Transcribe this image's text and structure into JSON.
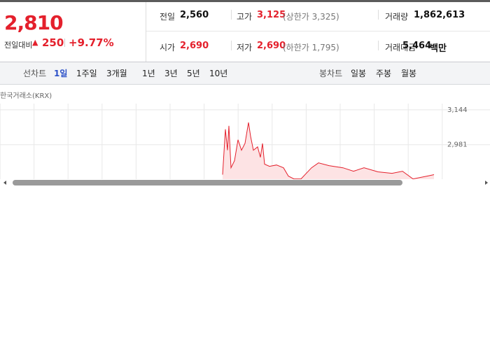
{
  "quote": {
    "price": "2,810",
    "change_label": "전일대비",
    "change": "250",
    "change_rate": "+9.77%"
  },
  "stats": [
    [
      {
        "label": "전일",
        "value": "2,560"
      },
      {
        "label": "고가",
        "value": "3,125",
        "note": "(상한가 3,325)"
      },
      {
        "label": "거래량",
        "value": "1,862,613"
      }
    ],
    [
      {
        "label": "시가",
        "value": "2,690"
      },
      {
        "label": "저가",
        "value": "2,690",
        "note": "(하한가 1,795)"
      },
      {
        "label": "거래대금",
        "value": "5,464",
        "unit": "백만"
      }
    ]
  ],
  "toolbar": {
    "line_label": "선차트",
    "line_periods": [
      "1일",
      "1주일",
      "3개월",
      "1년",
      "3년",
      "5년",
      "10년"
    ],
    "candle_label": "봉차트",
    "candle_periods": [
      "일봉",
      "주봉",
      "월봉"
    ]
  },
  "chart_data": {
    "type": "line",
    "source": "한국거래소(KRX)",
    "color": "#e4202c",
    "grid": true,
    "x": [
      63.6,
      64.4,
      65,
      65.4,
      66,
      67,
      68,
      69,
      70,
      71,
      71.6,
      72.4,
      73.6,
      74.4,
      75,
      75.6,
      77,
      79,
      81,
      82.4,
      84,
      86,
      89,
      91,
      94,
      98,
      101,
      104,
      108,
      112,
      115,
      118,
      122,
      124
    ],
    "values": [
      2841,
      3053,
      2955,
      3069,
      2873,
      2906,
      3004,
      2955,
      2987,
      3085,
      3020,
      2955,
      2971,
      2922,
      2987,
      2890,
      2880,
      2886,
      2873,
      2834,
      2821,
      2821,
      2873,
      2896,
      2883,
      2873,
      2857,
      2873,
      2854,
      2847,
      2857,
      2821,
      2834,
      2841
    ],
    "xlim": [
      0,
      127
    ],
    "ylim": [
      2800,
      3160
    ],
    "yticks": [
      {
        "value": 3144,
        "label": "3,144"
      },
      {
        "value": 2981,
        "label": "2,981"
      }
    ]
  }
}
